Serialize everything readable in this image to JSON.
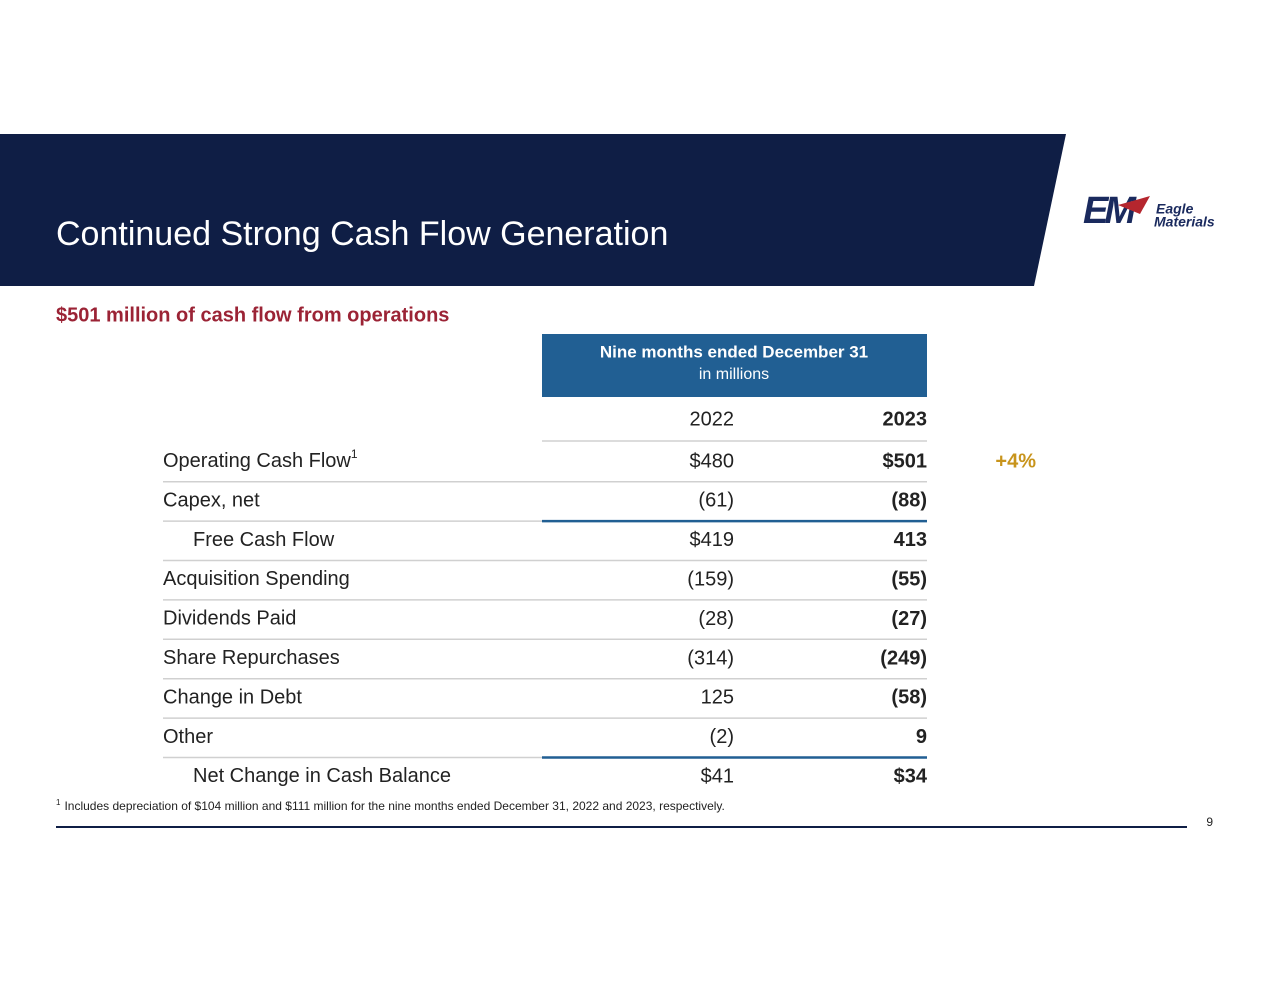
{
  "header": {
    "title": "Continued Strong Cash Flow Generation"
  },
  "logo": {
    "mark": "EM",
    "line1": "Eagle",
    "line2": "Materials"
  },
  "subtitle": "$501 million of cash flow from operations",
  "table": {
    "header": {
      "title": "Nine months ended December 31",
      "subtitle": "in millions"
    },
    "columns": [
      "2022",
      "2023"
    ],
    "rows": [
      {
        "label": "Operating Cash Flow",
        "sup": "1",
        "values": [
          "$480",
          "$501"
        ],
        "note": "+4%"
      },
      {
        "label": "Capex, net",
        "values": [
          "(61)",
          "(88)"
        ],
        "rule_below": true
      },
      {
        "label": "Free Cash Flow",
        "indent": true,
        "values": [
          "$419",
          "413"
        ]
      },
      {
        "label": "Acquisition Spending",
        "values": [
          "(159)",
          "(55)"
        ]
      },
      {
        "label": "Dividends Paid",
        "values": [
          "(28)",
          "(27)"
        ]
      },
      {
        "label": "Share Repurchases",
        "values": [
          "(314)",
          "(249)"
        ]
      },
      {
        "label": "Change in Debt",
        "values": [
          "125",
          "(58)"
        ]
      },
      {
        "label": "Other",
        "values": [
          "(2)",
          "9"
        ],
        "rule_below": true
      },
      {
        "label": "Net Change in Cash Balance",
        "indent": true,
        "values": [
          "$41",
          "$34"
        ]
      }
    ]
  },
  "footnote": {
    "marker": "1",
    "text": "Includes depreciation of $104 million and $111 million for the nine months ended December 31, 2022 and 2023, respectively."
  },
  "page_number": "9"
}
